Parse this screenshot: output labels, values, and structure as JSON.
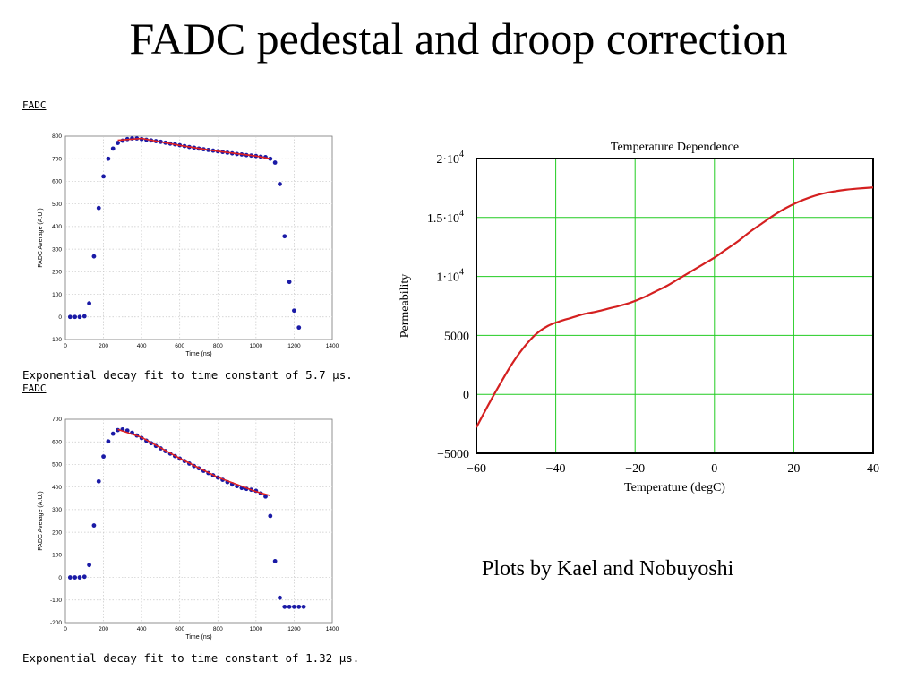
{
  "title": "FADC pedestal and droop correction",
  "credit": "Plots by Kael and Nobuyoshi",
  "chart_data": [
    {
      "type": "scatter",
      "header": "FADC",
      "caption": "Exponential decay fit to time constant of 5.7 µs.",
      "xlabel": "Time (ns)",
      "ylabel": "FADC Average (A.U.)",
      "xlim": [
        0,
        1400
      ],
      "ylim": [
        -100,
        800
      ],
      "xticks": [
        "0",
        "200",
        "400",
        "600",
        "800",
        "1000",
        "1200",
        "1400"
      ],
      "yticks": [
        "-100",
        "0",
        "100",
        "200",
        "300",
        "400",
        "500",
        "600",
        "700",
        "800"
      ],
      "grid": true,
      "series": [
        {
          "kind": "points",
          "color": "#1a1aa6",
          "x": [
            25,
            50,
            75,
            100,
            125,
            150,
            175,
            200,
            225,
            250,
            275,
            300,
            325,
            350,
            375,
            400,
            425,
            450,
            475,
            500,
            525,
            550,
            575,
            600,
            625,
            650,
            675,
            700,
            725,
            750,
            775,
            800,
            825,
            850,
            875,
            900,
            925,
            950,
            975,
            1000,
            1025,
            1050,
            1075,
            1100,
            1125,
            1150,
            1175,
            1200,
            1225
          ],
          "y": [
            0,
            0,
            0,
            3,
            60,
            268,
            482,
            622,
            700,
            745,
            770,
            780,
            787,
            790,
            790,
            787,
            784,
            781,
            778,
            775,
            771,
            767,
            764,
            760,
            756,
            752,
            749,
            745,
            742,
            739,
            736,
            733,
            730,
            727,
            724,
            721,
            719,
            716,
            714,
            712,
            709,
            707,
            700,
            683,
            588,
            357,
            155,
            28,
            -47
          ]
        },
        {
          "kind": "fit-line",
          "color": "#e02020",
          "x": [
            275,
            400,
            600,
            800,
            1000,
            1075
          ],
          "y": [
            782,
            790,
            759,
            733,
            712,
            700
          ]
        }
      ]
    },
    {
      "type": "scatter",
      "header": "FADC",
      "caption": "Exponential decay fit to time constant of 1.32 µs.",
      "xlabel": "Time (ns)",
      "ylabel": "FADC Average (A.U.)",
      "xlim": [
        0,
        1400
      ],
      "ylim": [
        -200,
        700
      ],
      "xticks": [
        "0",
        "200",
        "400",
        "600",
        "800",
        "1000",
        "1200",
        "1400"
      ],
      "yticks": [
        "-200",
        "-100",
        "0",
        "100",
        "200",
        "300",
        "400",
        "500",
        "600",
        "700"
      ],
      "grid": true,
      "series": [
        {
          "kind": "points",
          "color": "#1a1aa6",
          "x": [
            25,
            50,
            75,
            100,
            125,
            150,
            175,
            200,
            225,
            250,
            275,
            300,
            325,
            350,
            375,
            400,
            425,
            450,
            475,
            500,
            525,
            550,
            575,
            600,
            625,
            650,
            675,
            700,
            725,
            750,
            775,
            800,
            825,
            850,
            875,
            900,
            925,
            950,
            975,
            1000,
            1025,
            1050,
            1075,
            1100,
            1125,
            1150,
            1175,
            1200,
            1225,
            1250
          ],
          "y": [
            0,
            0,
            0,
            3,
            55,
            230,
            425,
            535,
            602,
            636,
            652,
            655,
            650,
            640,
            628,
            617,
            605,
            594,
            582,
            571,
            559,
            548,
            537,
            526,
            515,
            504,
            493,
            483,
            472,
            462,
            452,
            442,
            432,
            422,
            413,
            404,
            396,
            392,
            388,
            383,
            372,
            358,
            272,
            72,
            -90,
            -130,
            -130,
            -130,
            -130,
            -130
          ]
        },
        {
          "kind": "fit-line",
          "color": "#e02020",
          "x": [
            275,
            400,
            600,
            800,
            1000,
            1075
          ],
          "y": [
            655,
            620,
            527,
            443,
            380,
            362
          ]
        }
      ]
    },
    {
      "type": "line",
      "title": "Temperature Dependence",
      "xlabel": "Temperature (degC)",
      "ylabel": "Permeability",
      "xlim": [
        -60,
        40
      ],
      "ylim": [
        -5000,
        20000
      ],
      "xticks": [
        "-60",
        "-40",
        "-20",
        "0",
        "20",
        "40"
      ],
      "yticks": [
        "-5000",
        "0",
        "5000",
        "1·10^4",
        "1.5·10^4",
        "2·10^4"
      ],
      "grid": true,
      "grid_color": "#22cc22",
      "series": [
        {
          "color": "#d42020",
          "x": [
            -60,
            -57,
            -54,
            -51,
            -48,
            -45,
            -42,
            -39,
            -36,
            -33,
            -30,
            -27,
            -24,
            -21,
            -18,
            -15,
            -12,
            -9,
            -6,
            -3,
            0,
            3,
            6,
            9,
            12,
            15,
            18,
            21,
            24,
            27,
            30,
            33,
            36,
            40
          ],
          "y": [
            -2800,
            -900,
            900,
            2600,
            4000,
            5100,
            5800,
            6200,
            6500,
            6800,
            7000,
            7250,
            7500,
            7800,
            8200,
            8700,
            9200,
            9800,
            10400,
            11000,
            11600,
            12300,
            13000,
            13800,
            14500,
            15200,
            15800,
            16300,
            16700,
            17000,
            17200,
            17350,
            17450,
            17550
          ]
        }
      ]
    }
  ]
}
